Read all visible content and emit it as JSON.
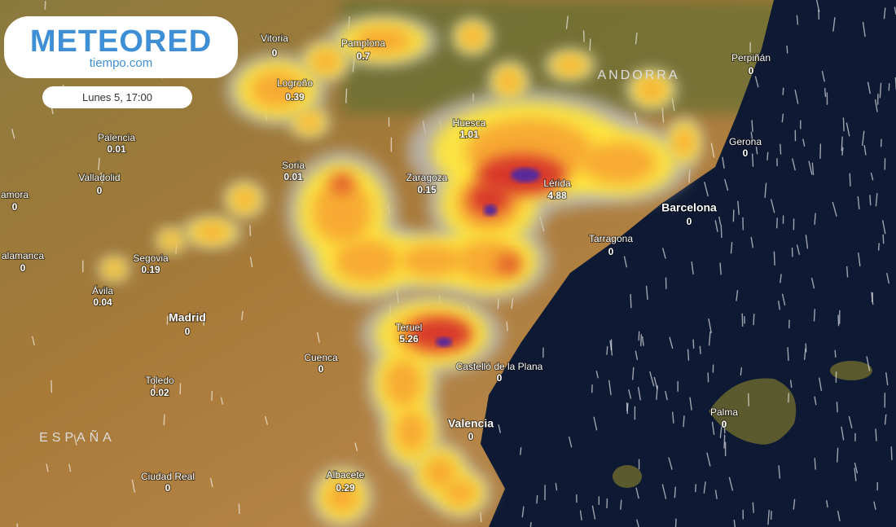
{
  "header": {
    "logo": "METEORED",
    "logo_sub": "tiempo.com",
    "date": "Lunes 5, 17:00"
  },
  "regions": [
    "ESPAÑA",
    "ANDORRA"
  ],
  "cities": [
    {
      "name": "Vitoria",
      "value": 0
    },
    {
      "name": "Pamplona",
      "value": 0.7
    },
    {
      "name": "Logroño",
      "value": 0.39
    },
    {
      "name": "Perpiñán",
      "value": 0
    },
    {
      "name": "Huesca",
      "value": 1.01
    },
    {
      "name": "Palencia",
      "value": 0.01
    },
    {
      "name": "Gerona",
      "value": 0
    },
    {
      "name": "Soria",
      "value": 0.01
    },
    {
      "name": "Zaragoza",
      "value": 0.15
    },
    {
      "name": "Lérida",
      "value": 4.88
    },
    {
      "name": "Valladolid",
      "value": 0
    },
    {
      "name": "amora",
      "value": 0
    },
    {
      "name": "Barcelona",
      "value": 0
    },
    {
      "name": "Tarragona",
      "value": 0
    },
    {
      "name": "alamanca",
      "value": 0
    },
    {
      "name": "Segovia",
      "value": 0.19
    },
    {
      "name": "Ávila",
      "value": 0.04
    },
    {
      "name": "Madrid",
      "value": 0
    },
    {
      "name": "Teruel",
      "value": 5.26
    },
    {
      "name": "Cuenca",
      "value": 0
    },
    {
      "name": "Castelló de la Plana",
      "value": 0
    },
    {
      "name": "Toledo",
      "value": 0.02
    },
    {
      "name": "Valencia",
      "value": 0
    },
    {
      "name": "Palma",
      "value": 0
    },
    {
      "name": "Ciudad Real",
      "value": 0
    },
    {
      "name": "Albacete",
      "value": 0.29
    }
  ]
}
